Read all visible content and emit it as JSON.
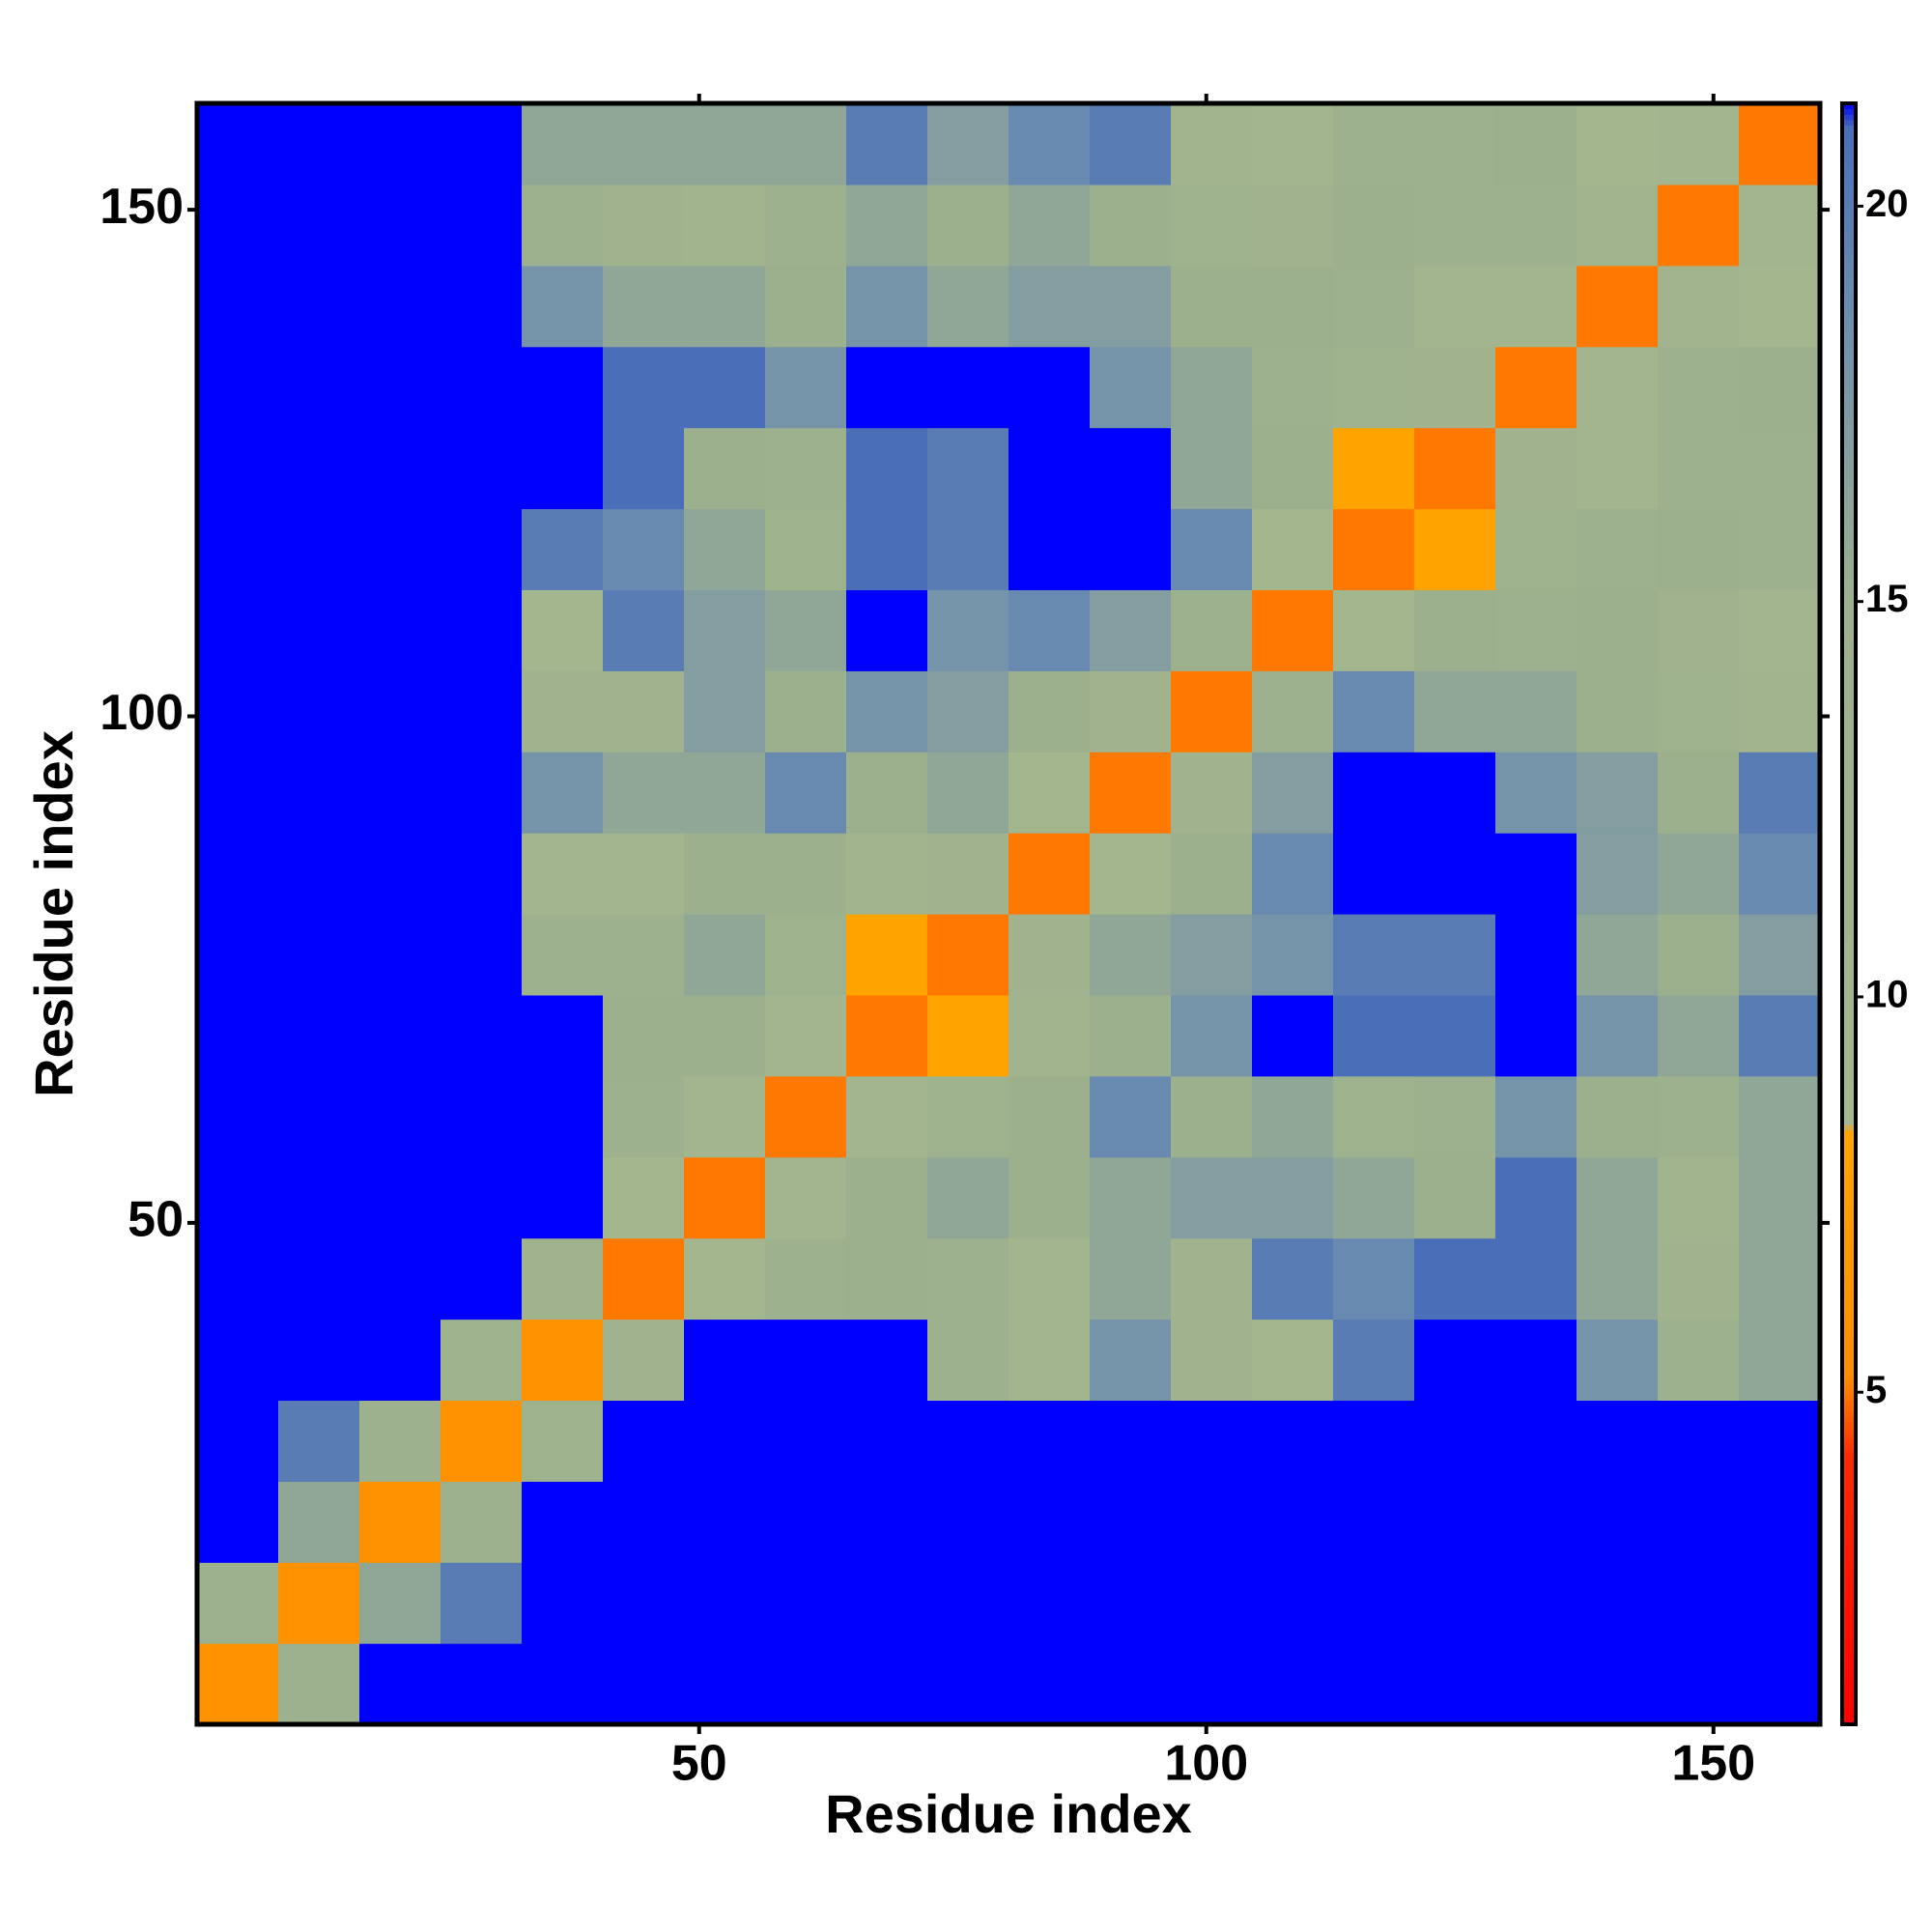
{
  "chart_data": {
    "type": "heatmap",
    "xlabel": "Residue index",
    "ylabel": "Residue index",
    "xlim": [
      0.5,
      160.5
    ],
    "ylim": [
      0.5,
      160.5
    ],
    "xticks": [
      50,
      100,
      150
    ],
    "yticks": [
      50,
      100,
      150
    ],
    "clim": [
      0.8,
      21.3
    ],
    "cticks": [
      5,
      10,
      15,
      20
    ],
    "colorscale": [
      [
        0.8,
        "#ff0000"
      ],
      [
        4.2,
        "#ff2a00"
      ],
      [
        5.2,
        "#ff8c00"
      ],
      [
        8.3,
        "#ffa500"
      ],
      [
        8.4,
        "#a4b78e"
      ],
      [
        15,
        "#9db08e"
      ],
      [
        18.5,
        "#6f8fae"
      ],
      [
        21,
        "#4a6fb8"
      ],
      [
        21.3,
        "#0000ff"
      ]
    ],
    "over_color": "#0000ff",
    "z": [
      [
        6,
        14,
        22,
        22,
        22,
        22,
        22,
        22,
        22,
        22,
        22,
        22,
        22,
        22,
        22,
        22,
        22,
        22,
        22,
        22
      ],
      [
        14,
        6,
        16,
        20,
        22,
        22,
        22,
        22,
        22,
        22,
        22,
        22,
        22,
        22,
        22,
        22,
        22,
        22,
        22,
        22
      ],
      [
        22,
        16,
        6,
        14,
        22,
        22,
        22,
        22,
        22,
        22,
        22,
        22,
        22,
        22,
        22,
        22,
        22,
        22,
        22,
        22
      ],
      [
        22,
        20,
        14,
        6,
        13,
        22,
        22,
        22,
        22,
        22,
        22,
        22,
        22,
        22,
        22,
        22,
        22,
        22,
        22,
        22
      ],
      [
        22,
        22,
        22,
        13,
        6,
        12,
        22,
        22,
        22,
        14,
        10,
        18,
        12,
        9,
        20,
        22,
        22,
        18,
        14,
        16
      ],
      [
        22,
        22,
        22,
        22,
        12,
        5,
        9,
        14,
        15,
        14,
        10,
        16,
        12,
        20,
        19,
        21,
        21,
        16,
        12,
        16
      ],
      [
        22,
        22,
        22,
        22,
        22,
        9,
        5,
        10,
        15,
        16,
        15,
        16,
        17,
        17,
        16,
        15,
        21,
        16,
        11,
        16
      ],
      [
        22,
        22,
        22,
        22,
        22,
        14,
        10,
        5,
        10,
        13,
        15,
        19,
        15,
        16,
        13,
        14,
        18,
        15,
        14,
        16
      ],
      [
        22,
        22,
        22,
        22,
        22,
        15,
        15,
        10,
        5,
        8,
        11,
        15,
        18,
        22,
        21,
        21,
        22,
        18,
        16,
        20
      ],
      [
        22,
        22,
        22,
        22,
        14,
        14,
        16,
        13,
        8,
        5,
        12,
        16,
        17,
        18,
        20,
        20,
        22,
        16,
        15,
        17
      ],
      [
        22,
        22,
        22,
        22,
        10,
        10,
        15,
        15,
        11,
        12,
        5,
        9,
        15,
        19,
        22,
        22,
        22,
        17,
        16,
        19
      ],
      [
        22,
        22,
        22,
        22,
        18,
        16,
        16,
        19,
        15,
        16,
        9,
        5,
        12,
        17,
        22,
        22,
        18,
        17,
        15,
        20
      ],
      [
        22,
        22,
        22,
        22,
        12,
        12,
        17,
        15,
        18,
        17,
        15,
        12,
        5,
        14,
        19,
        16,
        16,
        15,
        13,
        11
      ],
      [
        22,
        22,
        22,
        22,
        9,
        20,
        17,
        16,
        22,
        18,
        19,
        17,
        14,
        5,
        9,
        15,
        14,
        15,
        12,
        10
      ],
      [
        22,
        22,
        22,
        22,
        20,
        19,
        16,
        13,
        21,
        20,
        22,
        22,
        19,
        9,
        5,
        8,
        13,
        14,
        15,
        14
      ],
      [
        22,
        22,
        22,
        22,
        22,
        21,
        15,
        14,
        21,
        20,
        22,
        22,
        16,
        15,
        8,
        5,
        12,
        10,
        14,
        14
      ],
      [
        22,
        22,
        22,
        22,
        22,
        21,
        21,
        18,
        22,
        22,
        22,
        18,
        16,
        14,
        13,
        12,
        5,
        10,
        14,
        15
      ],
      [
        22,
        22,
        22,
        22,
        18,
        16,
        16,
        15,
        18,
        16,
        17,
        17,
        15,
        15,
        14,
        10,
        10,
        5,
        11,
        9
      ],
      [
        22,
        22,
        22,
        22,
        14,
        12,
        11,
        14,
        16,
        15,
        16,
        15,
        13,
        12,
        15,
        14,
        14,
        11,
        5,
        10
      ],
      [
        22,
        22,
        22,
        22,
        16,
        16,
        16,
        16,
        20,
        17,
        19,
        20,
        11,
        10,
        14,
        14,
        15,
        9,
        10,
        5
      ]
    ]
  }
}
